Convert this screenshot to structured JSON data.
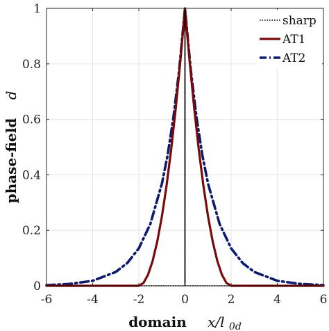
{
  "chart_data": {
    "type": "line",
    "xlabel_word": "domain",
    "xlabel_symbol": "x/l",
    "xlabel_subscript": "0d",
    "ylabel_word": "phase-field",
    "ylabel_symbol": "d",
    "xlim": [
      -6,
      6
    ],
    "ylim": [
      0,
      1
    ],
    "x_ticks": [
      "-6",
      "-4",
      "-2",
      "0",
      "2",
      "4",
      "6"
    ],
    "y_ticks": [
      "0",
      "0.2",
      "0.4",
      "0.6",
      "0.8",
      "1"
    ],
    "grid": true,
    "legend_position": "top-right",
    "series": [
      {
        "name": "sharp",
        "color": "#000000",
        "style": "dotted",
        "x": [
          -6,
          -0.001,
          0,
          0.001,
          6
        ],
        "y": [
          0,
          0,
          1,
          0,
          0
        ]
      },
      {
        "name": "AT1",
        "color": "#7a0a0a",
        "style": "solid",
        "x": [
          -6,
          -2,
          -1.8,
          -1.6,
          -1.4,
          -1.2,
          -1.0,
          -0.8,
          -0.6,
          -0.4,
          -0.2,
          0,
          0.2,
          0.4,
          0.6,
          0.8,
          1.0,
          1.2,
          1.4,
          1.6,
          1.8,
          2,
          6
        ],
        "y": [
          0,
          0,
          0.01,
          0.04,
          0.09,
          0.16,
          0.25,
          0.36,
          0.49,
          0.64,
          0.81,
          1,
          0.81,
          0.64,
          0.49,
          0.36,
          0.25,
          0.16,
          0.09,
          0.04,
          0.01,
          0,
          0
        ]
      },
      {
        "name": "AT2",
        "color": "#0d1b6e",
        "style": "dashdot",
        "x": [
          -6,
          -5,
          -4,
          -3,
          -2.5,
          -2,
          -1.5,
          -1,
          -0.75,
          -0.5,
          -0.25,
          0,
          0.25,
          0.5,
          0.75,
          1,
          1.5,
          2,
          2.5,
          3,
          4,
          5,
          6
        ],
        "y": [
          0.0025,
          0.0067,
          0.018,
          0.05,
          0.082,
          0.135,
          0.223,
          0.368,
          0.472,
          0.607,
          0.779,
          1,
          0.779,
          0.607,
          0.472,
          0.368,
          0.223,
          0.135,
          0.082,
          0.05,
          0.018,
          0.0067,
          0.0025
        ]
      }
    ]
  }
}
